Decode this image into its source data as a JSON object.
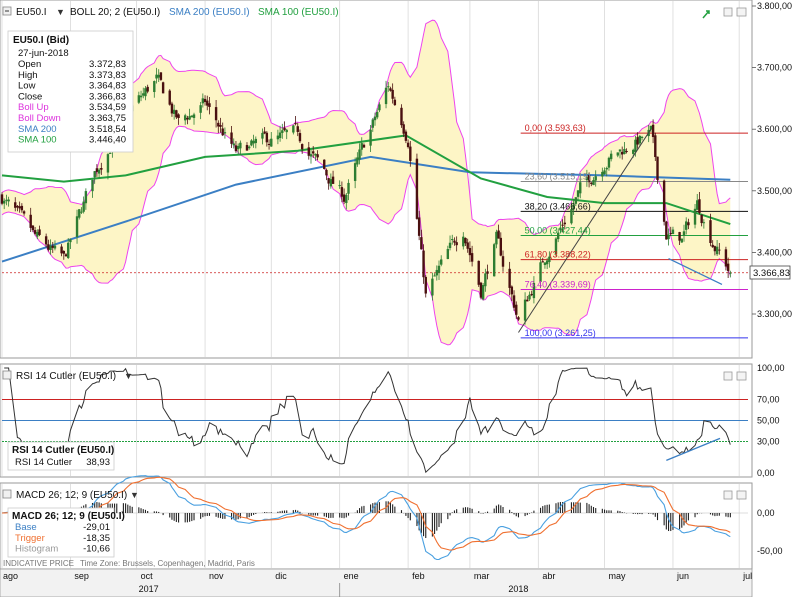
{
  "toolbar": {
    "symbol": "EU50.I",
    "boll_label": "BOLL 20; 2 (EU50.I)",
    "sma200_label": "SMA 200 (EU50.I)",
    "sma100_label": "SMA 100 (EU50.I)"
  },
  "colors": {
    "up_candle": "#2e7d32",
    "down_candle": "#4a1010",
    "boll_fill": "#fdf5c6",
    "boll_line": "#ee44ee",
    "sma200": "#3b7fc4",
    "sma100": "#22a040",
    "fib_red": "#cc2222",
    "fib_magenta": "#cc22cc",
    "fib_blue": "#3333ee",
    "fib_black": "#111111",
    "fib_green": "#22a040",
    "fib_gray": "#888888",
    "rsi_line": "#333333",
    "rsi70": "#cc2222",
    "rsi50": "#3b7fc4",
    "rsi30": "#22a040",
    "macd_base": "#4aa0e0",
    "macd_trigger": "#f07030"
  },
  "info_box": {
    "title": "EU50.I (Bid)",
    "date": "27-jun-2018",
    "rows": [
      {
        "label": "Open",
        "value": "3.372,83",
        "color": "#111111"
      },
      {
        "label": "High",
        "value": "3.373,83",
        "color": "#111111"
      },
      {
        "label": "Low",
        "value": "3.364,83",
        "color": "#111111"
      },
      {
        "label": "Close",
        "value": "3.366,83",
        "color": "#111111"
      },
      {
        "label": "Boll Up",
        "value": "3.534,59",
        "color": "#dd33dd"
      },
      {
        "label": "Boll Down",
        "value": "3.363,75",
        "color": "#dd33dd"
      },
      {
        "label": "SMA 200",
        "value": "3.518,54",
        "color": "#3b7fc4"
      },
      {
        "label": "SMA 100",
        "value": "3.446,40",
        "color": "#22a040"
      }
    ]
  },
  "price_axis": {
    "ticks": [
      "3.800,00",
      "3.700,00",
      "3.600,00",
      "3.500,00",
      "3.400,00",
      "3.300,00"
    ],
    "current_label": "3.366,83"
  },
  "fib_labels": [
    {
      "text": "0,00 (3.593,63)",
      "color": "#cc2222"
    },
    {
      "text": "23,60 (3.515,19)",
      "color": "#888888"
    },
    {
      "text": "38,20 (3.466,66)",
      "color": "#111111"
    },
    {
      "text": "50,00 (3.427,44)",
      "color": "#22a040"
    },
    {
      "text": "61,80 (3.388,22)",
      "color": "#cc2222"
    },
    {
      "text": "76,40 (3.339,69)",
      "color": "#cc22cc"
    },
    {
      "text": "100,00 (3.261,25)",
      "color": "#3333ee"
    }
  ],
  "rsi": {
    "header": "RSI 14 Cutler (EU50.I)",
    "box_title": "RSI 14 Cutler (EU50.I)",
    "box_label": "RSI 14 Cutler",
    "box_value": "38,93",
    "ticks": [
      "100,00",
      "70,00",
      "50,00",
      "30,00",
      "0,00"
    ]
  },
  "macd": {
    "header": "MACD 26; 12; 9 (EU50.I)",
    "box_title": "MACD 26; 12; 9 (EU50.I)",
    "rows": [
      {
        "label": "Base",
        "value": "-29,01",
        "color": "#3b7fc4"
      },
      {
        "label": "Trigger",
        "value": "-18,35",
        "color": "#f07030"
      },
      {
        "label": "Histogram",
        "value": "-10,66",
        "color": "#999999"
      }
    ],
    "ticks": [
      "0,00",
      "-50,00"
    ]
  },
  "footer": {
    "indicative": "INDICATIVE PRICE",
    "timezone": "Time Zone: Brussels, Copenhagen, Madrid, Paris",
    "months": [
      "ago",
      "sep",
      "oct",
      "nov",
      "dic",
      "ene",
      "feb",
      "mar",
      "abr",
      "may",
      "jun",
      "jul"
    ],
    "years": [
      "2017",
      "2018"
    ]
  },
  "chart_data": {
    "type": "line",
    "title": "EU50.I",
    "x_range": [
      "2017-08-01",
      "2018-07-05"
    ],
    "ylim": [
      3240,
      3810
    ],
    "close_series_anchors": [
      {
        "x": "2017-08-01",
        "y": 3490
      },
      {
        "x": "2017-08-15",
        "y": 3425
      },
      {
        "x": "2017-08-29",
        "y": 3385
      },
      {
        "x": "2017-09-12",
        "y": 3530
      },
      {
        "x": "2017-09-26",
        "y": 3620
      },
      {
        "x": "2017-10-10",
        "y": 3680
      },
      {
        "x": "2017-10-20",
        "y": 3610
      },
      {
        "x": "2017-11-01",
        "y": 3640
      },
      {
        "x": "2017-11-15",
        "y": 3560
      },
      {
        "x": "2017-11-29",
        "y": 3580
      },
      {
        "x": "2017-12-13",
        "y": 3590
      },
      {
        "x": "2017-12-27",
        "y": 3520
      },
      {
        "x": "2018-01-03",
        "y": 3490
      },
      {
        "x": "2018-01-23",
        "y": 3670
      },
      {
        "x": "2018-02-01",
        "y": 3590
      },
      {
        "x": "2018-02-09",
        "y": 3330
      },
      {
        "x": "2018-02-26",
        "y": 3440
      },
      {
        "x": "2018-03-06",
        "y": 3340
      },
      {
        "x": "2018-03-13",
        "y": 3420
      },
      {
        "x": "2018-03-23",
        "y": 3290
      },
      {
        "x": "2018-04-05",
        "y": 3400
      },
      {
        "x": "2018-04-20",
        "y": 3500
      },
      {
        "x": "2018-05-01",
        "y": 3550
      },
      {
        "x": "2018-05-22",
        "y": 3593
      },
      {
        "x": "2018-05-29",
        "y": 3430
      },
      {
        "x": "2018-06-05",
        "y": 3420
      },
      {
        "x": "2018-06-12",
        "y": 3480
      },
      {
        "x": "2018-06-19",
        "y": 3420
      },
      {
        "x": "2018-06-27",
        "y": 3367
      }
    ],
    "sma200_anchors": [
      {
        "x": "2017-08-01",
        "y": 3385
      },
      {
        "x": "2017-09-26",
        "y": 3450
      },
      {
        "x": "2017-11-15",
        "y": 3510
      },
      {
        "x": "2018-01-15",
        "y": 3555
      },
      {
        "x": "2018-03-01",
        "y": 3530
      },
      {
        "x": "2018-05-01",
        "y": 3525
      },
      {
        "x": "2018-06-27",
        "y": 3518
      }
    ],
    "sma100_anchors": [
      {
        "x": "2017-08-01",
        "y": 3525
      },
      {
        "x": "2017-08-29",
        "y": 3515
      },
      {
        "x": "2017-09-26",
        "y": 3525
      },
      {
        "x": "2017-11-01",
        "y": 3555
      },
      {
        "x": "2017-12-13",
        "y": 3565
      },
      {
        "x": "2018-01-31",
        "y": 3590
      },
      {
        "x": "2018-03-06",
        "y": 3520
      },
      {
        "x": "2018-04-05",
        "y": 3490
      },
      {
        "x": "2018-05-01",
        "y": 3480
      },
      {
        "x": "2018-05-29",
        "y": 3480
      },
      {
        "x": "2018-06-27",
        "y": 3446
      }
    ],
    "fibonacci": [
      {
        "level": "0,00",
        "value": 3593.63
      },
      {
        "level": "23,60",
        "value": 3515.19
      },
      {
        "level": "38,20",
        "value": 3466.66
      },
      {
        "level": "50,00",
        "value": 3427.44
      },
      {
        "level": "61,80",
        "value": 3388.22
      },
      {
        "level": "76,40",
        "value": 3339.69
      },
      {
        "level": "100,00",
        "value": 3261.25
      }
    ],
    "rsi_levels": [
      70,
      50,
      30
    ],
    "rsi_last": 38.93,
    "macd_last": {
      "base": -29.01,
      "trigger": -18.35,
      "histogram": -10.66
    }
  }
}
